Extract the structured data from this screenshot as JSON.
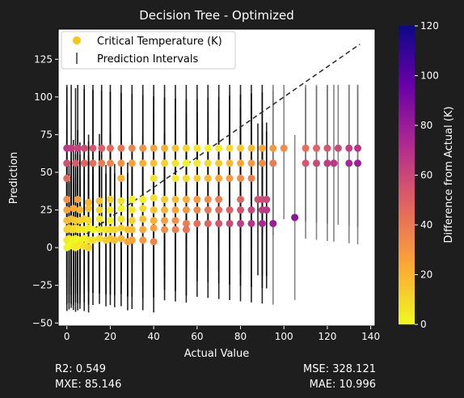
{
  "chart_data": {
    "type": "scatter",
    "title": "Decision Tree - Optimized",
    "xlabel": "Actual Value",
    "ylabel": "Prediction",
    "xlim": [
      -4,
      142
    ],
    "ylim": [
      -52,
      145
    ],
    "xticks": [
      0,
      20,
      40,
      60,
      80,
      100,
      120,
      140
    ],
    "yticks": [
      -50,
      -25,
      0,
      25,
      50,
      75,
      100,
      125
    ],
    "grid": false,
    "legend": {
      "placement": "top-left",
      "entries": [
        "Critical Temperature (K)",
        "Prediction Intervals"
      ]
    },
    "reference_line": {
      "style": "dashed",
      "color": "#333333",
      "from": [
        0,
        0
      ],
      "to": [
        135,
        135
      ]
    },
    "colorbar": {
      "label": "Difference from Actual (K)",
      "range": [
        0,
        120
      ],
      "ticks": [
        0,
        20,
        40,
        60,
        80,
        100,
        120
      ],
      "colormap": "plasma-reversed"
    },
    "series": [
      {
        "x": [
          0,
          2,
          5,
          8,
          12,
          16,
          20,
          25,
          30,
          35,
          40,
          45,
          50,
          55,
          60,
          65,
          70,
          75,
          80,
          85,
          90,
          95,
          100,
          110,
          115,
          120,
          125,
          130,
          134
        ],
        "y": [
          66,
          66,
          66,
          66,
          66,
          66,
          66,
          66,
          66,
          66,
          66,
          66,
          66,
          66,
          66,
          66,
          66,
          66,
          66,
          66,
          66,
          66,
          66,
          66,
          66,
          66,
          66,
          66,
          66
        ]
      },
      {
        "x": [
          0,
          4,
          8,
          12,
          16,
          20,
          25,
          30,
          35,
          40,
          45,
          50,
          55,
          60,
          65,
          70,
          75,
          80,
          85,
          90,
          95,
          110,
          115,
          120,
          123,
          130,
          134
        ],
        "y": [
          56,
          56,
          56,
          56,
          56,
          56,
          56,
          56,
          56,
          56,
          56,
          56,
          56,
          56,
          56,
          56,
          56,
          56,
          56,
          56,
          56,
          56,
          56,
          56,
          56,
          56,
          56
        ]
      },
      {
        "x": [
          0,
          25,
          40,
          50,
          55,
          60,
          65,
          70,
          75,
          80,
          85
        ],
        "y": [
          46,
          46,
          46,
          46,
          46,
          46,
          46,
          46,
          46,
          46,
          46
        ]
      },
      {
        "x": [
          0,
          5,
          10,
          15,
          20,
          25,
          30,
          35,
          40,
          45,
          50,
          55,
          60,
          65,
          70,
          80,
          88,
          90,
          92
        ],
        "y": [
          32,
          32,
          30,
          31,
          32,
          31,
          32,
          32,
          33,
          32,
          32,
          32,
          32,
          32,
          32,
          32,
          32,
          32,
          32
        ]
      },
      {
        "x": [
          0,
          3,
          6,
          10,
          15,
          20,
          25,
          30,
          35,
          40,
          45,
          50,
          55,
          60,
          65,
          70,
          75,
          80,
          85,
          90,
          92
        ],
        "y": [
          25,
          26,
          25,
          26,
          25,
          25,
          26,
          25,
          26,
          25,
          25,
          25,
          25,
          25,
          25,
          25,
          25,
          25,
          25,
          25,
          25
        ]
      },
      {
        "x": [
          0,
          2,
          4,
          6,
          8,
          10,
          15,
          20,
          25,
          30,
          35,
          40,
          45,
          50,
          55,
          60,
          65,
          70,
          75,
          80,
          85,
          90,
          95,
          105
        ],
        "y": [
          18,
          19,
          18,
          18,
          19,
          18,
          19,
          18,
          19,
          18,
          19,
          18,
          18,
          18,
          16,
          16,
          16,
          16,
          16,
          16,
          16,
          16,
          16,
          20
        ]
      },
      {
        "x": [
          0,
          1,
          2,
          3,
          4,
          5,
          6,
          8,
          10,
          12,
          15,
          18,
          20,
          22,
          25,
          28,
          30,
          35,
          40,
          45,
          50,
          55
        ],
        "y": [
          12,
          13,
          12,
          12,
          13,
          12,
          12,
          12,
          13,
          12,
          12,
          12,
          12,
          12,
          13,
          12,
          12,
          12,
          13,
          12,
          12,
          12
        ]
      },
      {
        "x": [
          0,
          1,
          2,
          3,
          4,
          5,
          6,
          8,
          10,
          12,
          15,
          18,
          20,
          22,
          25,
          28,
          30,
          35,
          40
        ],
        "y": [
          5,
          6,
          5,
          4,
          6,
          5,
          5,
          6,
          5,
          5,
          6,
          5,
          6,
          5,
          6,
          4,
          5,
          5,
          4
        ]
      },
      {
        "x": [
          0,
          1,
          2,
          3,
          4,
          5,
          6,
          8,
          10
        ],
        "y": [
          0,
          1,
          2,
          1,
          0,
          1,
          2,
          1,
          0
        ]
      }
    ],
    "stats": {
      "r2": "R2: 0.549",
      "mse": "MSE: 328.121",
      "mxe": "MXE: 85.146",
      "mae": "MAE: 10.996"
    }
  }
}
